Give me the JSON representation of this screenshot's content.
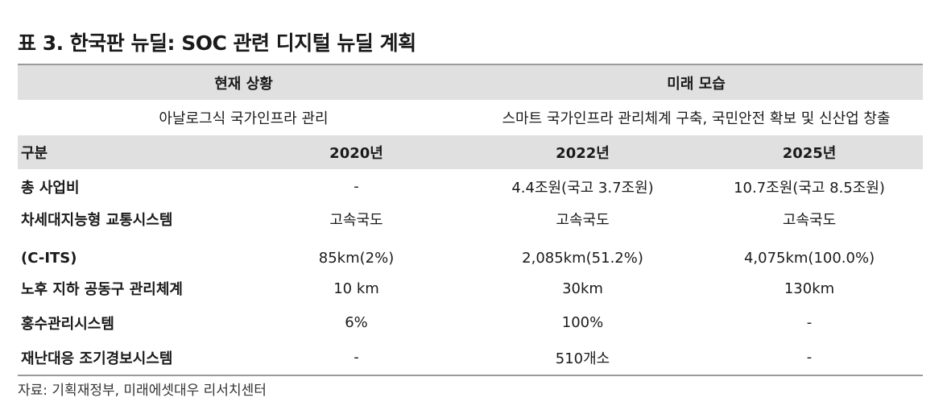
{
  "title": "표 3. 한국판 뉴딜: SOC 관련 디지털 뉴딜 계획",
  "header": {
    "current": "현재 상황",
    "future": "미래 모습",
    "current_desc": "아날로그식 국가인프라 관리",
    "future_desc": "스마트 국가인프라 관리체계 구축, 국민안전 확보 및 신산업 창출"
  },
  "columns": {
    "label": "구분",
    "y2020": "2020년",
    "y2022": "2022년",
    "y2025": "2025년"
  },
  "rows": [
    {
      "label": "총 사업비",
      "y2020": "-",
      "y2022": "4.4조원(국고 3.7조원)",
      "y2025": "10.7조원(국고 8.5조원)"
    },
    {
      "label_line1": "차세대지능형 교통시스템",
      "label_line2": "(C-ITS)",
      "y2020_line1": "고속국도",
      "y2020_line2": "85km(2%)",
      "y2022_line1": "고속국도",
      "y2022_line2": "2,085km(51.2%)",
      "y2025_line1": "고속국도",
      "y2025_line2": "4,075km(100.0%)"
    },
    {
      "label": "노후 지하 공동구 관리체계",
      "y2020": "10 km",
      "y2022": "30km",
      "y2025": "130km"
    },
    {
      "label": "홍수관리시스템",
      "y2020": "6%",
      "y2022": "100%",
      "y2025": "-"
    },
    {
      "label": "재난대응 조기경보시스템",
      "y2020": "-",
      "y2022": "510개소",
      "y2025": "-"
    }
  ],
  "source": "자료: 기획재정부, 미래에셋대우 리서치센터"
}
